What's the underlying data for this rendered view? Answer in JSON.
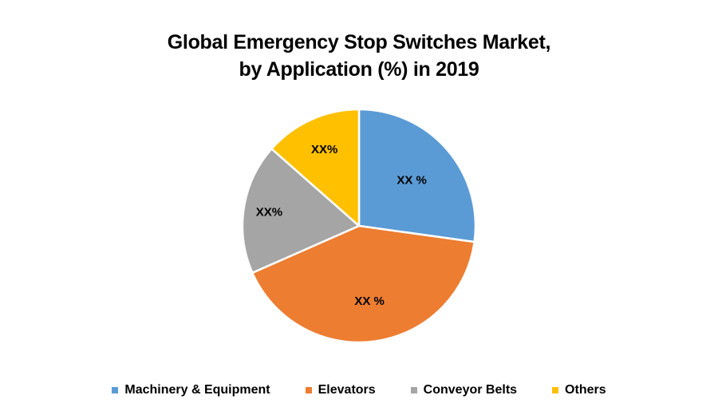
{
  "chart_data": {
    "type": "pie",
    "title": "Global Emergency Stop Switches Market, by Application (%) in 2019",
    "title_lines": [
      "Global Emergency Stop Switches Market,",
      "by Application (%) in 2019"
    ],
    "categories": [
      "Machinery & Equipment",
      "Elevators",
      "Conveyor Belts",
      "Others"
    ],
    "values": [
      27.2,
      41.2,
      18.1,
      13.5
    ],
    "data_labels": [
      "XX %",
      "XX %",
      "XX%",
      "XX%"
    ],
    "colors": [
      "#5B9BD5",
      "#ED7D31",
      "#A5A5A5",
      "#FFC000"
    ],
    "start_angle": "12 o'clock",
    "direction": "clockwise",
    "legend_position": "bottom"
  }
}
